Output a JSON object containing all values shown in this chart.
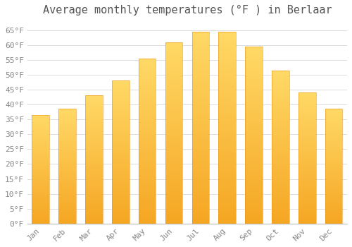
{
  "title": "Average monthly temperatures (°F ) in Berlaar",
  "months": [
    "Jan",
    "Feb",
    "Mar",
    "Apr",
    "May",
    "Jun",
    "Jul",
    "Aug",
    "Sep",
    "Oct",
    "Nov",
    "Dec"
  ],
  "values": [
    36.5,
    38.5,
    43.0,
    48.0,
    55.5,
    61.0,
    64.5,
    64.5,
    59.5,
    51.5,
    44.0,
    38.5
  ],
  "bar_color_bottom": "#F5A623",
  "bar_color_top": "#FFD966",
  "background_color": "#ffffff",
  "grid_color": "#dddddd",
  "ylim": [
    0,
    68
  ],
  "yticks": [
    0,
    5,
    10,
    15,
    20,
    25,
    30,
    35,
    40,
    45,
    50,
    55,
    60,
    65
  ],
  "title_fontsize": 11,
  "tick_fontsize": 8,
  "tick_label_color": "#888888",
  "title_color": "#555555",
  "bar_width": 0.65
}
